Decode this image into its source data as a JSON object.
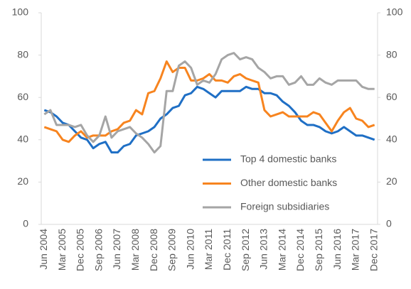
{
  "chart_data": {
    "type": "line",
    "categories": [
      "Jun 2004",
      null,
      null,
      "Mar 2005",
      null,
      null,
      "Dec 2005",
      null,
      null,
      "Sep 2006",
      null,
      null,
      "Jun 2007",
      null,
      null,
      "Mar 2008",
      null,
      null,
      "Dec 2008",
      null,
      null,
      "Sep 2009",
      null,
      null,
      "Jun 2010",
      null,
      null,
      "Mar 2011",
      null,
      null,
      "Dec 2011",
      null,
      null,
      "Sep 2012",
      null,
      null,
      "Jun 2013",
      null,
      null,
      "Mar 2014",
      null,
      null,
      "Dec 2014",
      null,
      null,
      "Sep 2015",
      null,
      null,
      "Jun 2016",
      null,
      null,
      "Mar 2017",
      null,
      null,
      "Dec 2017"
    ],
    "series": [
      {
        "name": "Top 4 domestic banks",
        "color": "#1f6fc5",
        "values": [
          54,
          53,
          51,
          48,
          47,
          44,
          41,
          40,
          36,
          38,
          39,
          34,
          34,
          37,
          38,
          42,
          43,
          44,
          46,
          50,
          52,
          55,
          56,
          61,
          62,
          65,
          64,
          62,
          60,
          63,
          63,
          63,
          63,
          65,
          64,
          64,
          62,
          62,
          61,
          58,
          56,
          53,
          49,
          47,
          47,
          46,
          44,
          43,
          44,
          46,
          44,
          42,
          42,
          41,
          40
        ]
      },
      {
        "name": "Other domestic banks",
        "color": "#f7841f",
        "values": [
          46,
          45,
          44,
          40,
          39,
          42,
          44,
          41,
          42,
          42,
          42,
          44,
          45,
          48,
          49,
          54,
          52,
          62,
          63,
          69,
          77,
          72,
          74,
          74,
          68,
          68,
          69,
          71,
          68,
          68,
          67,
          70,
          71,
          69,
          68,
          67,
          54,
          51,
          52,
          53,
          51,
          51,
          51,
          51,
          53,
          52,
          48,
          44,
          49,
          53,
          55,
          50,
          49,
          46,
          47
        ]
      },
      {
        "name": "Foreign subsidiaries",
        "color": "#a5a5a5",
        "values": [
          52,
          54,
          47,
          47,
          47,
          46,
          47,
          42,
          39,
          42,
          51,
          41,
          44,
          45,
          46,
          43,
          41,
          38,
          34,
          37,
          63,
          63,
          75,
          77,
          74,
          66,
          68,
          67,
          71,
          78,
          80,
          81,
          78,
          79,
          78,
          74,
          72,
          69,
          70,
          70,
          66,
          67,
          70,
          66,
          66,
          69,
          67,
          66,
          68,
          68,
          68,
          68,
          65,
          64,
          64
        ]
      }
    ],
    "ylim": [
      0,
      100
    ],
    "yticks": [
      0,
      20,
      40,
      60,
      80,
      100
    ],
    "y2lim": [
      0,
      100
    ],
    "y2ticks": [
      0,
      20,
      40,
      60,
      80,
      100
    ],
    "grid": false,
    "legend": "lower right"
  }
}
